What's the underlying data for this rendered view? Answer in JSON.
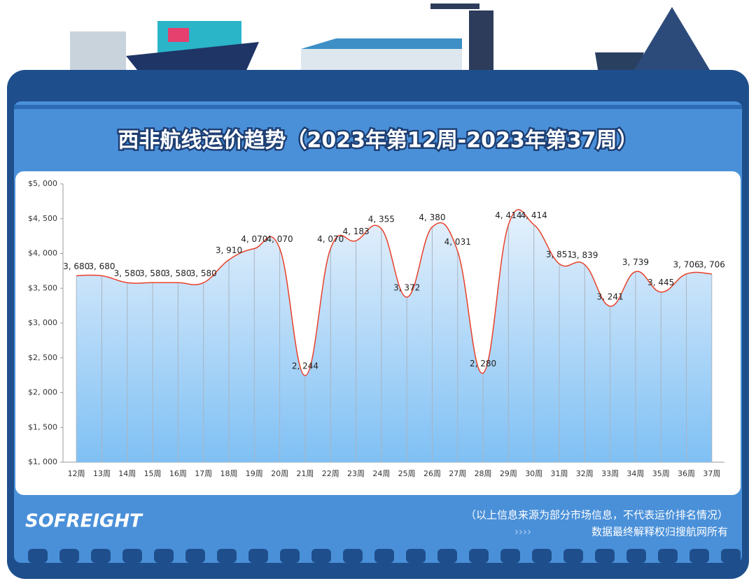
{
  "chart_data": {
    "type": "line",
    "title": "西非航线运价趋势（2023年第12周-2023年第37周）",
    "categories": [
      "12周",
      "13周",
      "14周",
      "15周",
      "16周",
      "17周",
      "18周",
      "19周",
      "20周",
      "21周",
      "22周",
      "23周",
      "24周",
      "25周",
      "26周",
      "27周",
      "28周",
      "29周",
      "30周",
      "31周",
      "32周",
      "33周",
      "34周",
      "35周",
      "36周",
      "37周"
    ],
    "values": [
      3680,
      3680,
      3580,
      3580,
      3580,
      3580,
      3910,
      4070,
      4070,
      2244,
      4070,
      4183,
      4355,
      3372,
      4380,
      4031,
      2280,
      4414,
      4414,
      3851,
      3839,
      3241,
      3739,
      3445,
      3706,
      3706
    ],
    "value_labels": [
      "3, 680",
      "3, 680",
      "3, 580",
      "3, 580",
      "3, 580",
      "3, 580",
      "3, 910",
      "4, 070",
      "4, 070",
      "2, 244",
      "4, 070",
      "4, 183",
      "4, 355",
      "3, 372",
      "4, 380",
      "4, 031",
      "2, 280",
      "4, 414",
      "4, 414",
      "3, 851",
      "3, 839",
      "3, 241",
      "3, 739",
      "3, 445",
      "3, 706",
      "3, 706"
    ],
    "color": "#e8402a",
    "ylim": [
      1000,
      5000
    ],
    "yticks": [
      {
        "value": 1000,
        "label": "$1, 000"
      },
      {
        "value": 1500,
        "label": "$1, 500"
      },
      {
        "value": 2000,
        "label": "$2, 000"
      },
      {
        "value": 2500,
        "label": "$2, 500"
      },
      {
        "value": 3000,
        "label": "$3, 000"
      },
      {
        "value": 3500,
        "label": "$3, 500"
      },
      {
        "value": 4000,
        "label": "$4, 000"
      },
      {
        "value": 4500,
        "label": "$4, 500"
      },
      {
        "value": 5000,
        "label": "$5, 000"
      }
    ],
    "logo": "SOFREIGHT",
    "note": "（以上信息来源为部分市场信息，不代表运价排名情况）",
    "rights": "数据最终解释权归搜航网所有"
  }
}
